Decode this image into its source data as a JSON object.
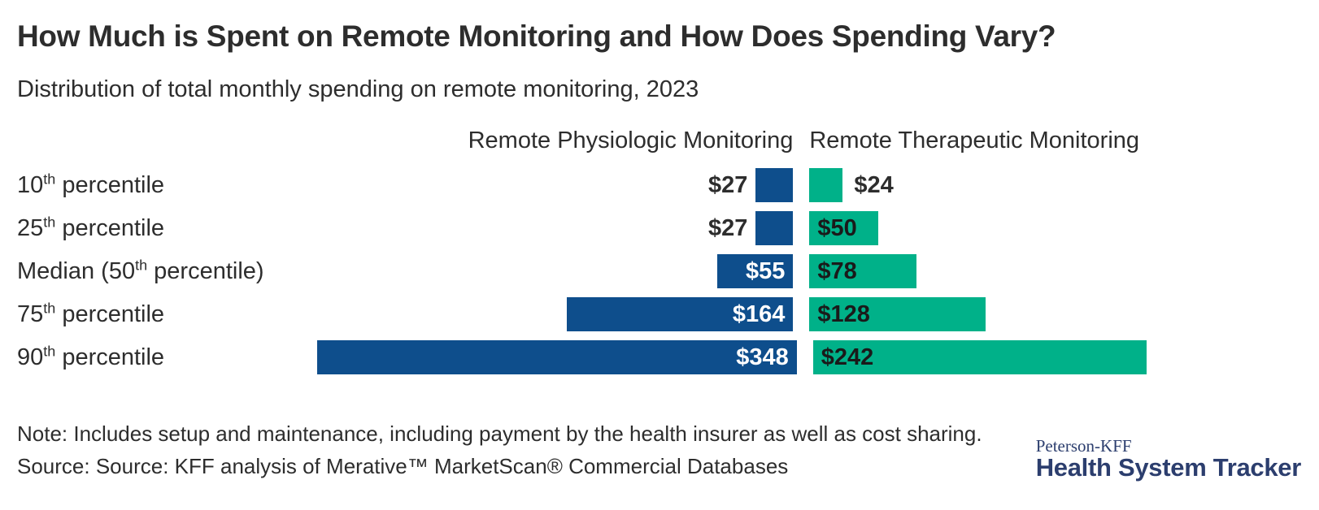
{
  "chart_data": {
    "type": "bar",
    "orientation": "horizontal-diverging",
    "title": "How Much is Spent on Remote Monitoring and How Does Spending Vary?",
    "subtitle": "Distribution of total monthly spending on remote monitoring, 2023",
    "value_prefix": "$",
    "xlim": [
      0,
      348
    ],
    "grid": false,
    "categories": [
      {
        "pre": "10",
        "sup": "th",
        "post": " percentile"
      },
      {
        "pre": "25",
        "sup": "th",
        "post": " percentile"
      },
      {
        "pre": "Median (50",
        "sup": "th",
        "post": " percentile)"
      },
      {
        "pre": "75",
        "sup": "th",
        "post": " percentile"
      },
      {
        "pre": "90",
        "sup": "th",
        "post": " percentile"
      }
    ],
    "series": [
      {
        "name": "Remote Physiologic Monitoring",
        "color": "#0e4e8c",
        "values": [
          27,
          27,
          55,
          164,
          348
        ],
        "labels": [
          "$27",
          "$27",
          "$55",
          "$164",
          "$348"
        ]
      },
      {
        "name": "Remote Therapeutic Monitoring",
        "color": "#00b189",
        "values": [
          24,
          50,
          78,
          128,
          242
        ],
        "labels": [
          "$24",
          "$50",
          "$78",
          "$128",
          "$242"
        ]
      }
    ]
  },
  "note": "Note: Includes setup and maintenance, including payment by the health insurer as well as cost sharing.",
  "source": "Source: Source: KFF analysis of Merative™ MarketScan® Commercial Databases",
  "logo": {
    "top": "Peterson-KFF",
    "bottom": "Health System Tracker"
  },
  "colors": {
    "rpm_bar": "#0e4e8c",
    "rtm_bar": "#00b189",
    "text": "#2d2d2d",
    "logo_navy": "#2c3e6e"
  }
}
